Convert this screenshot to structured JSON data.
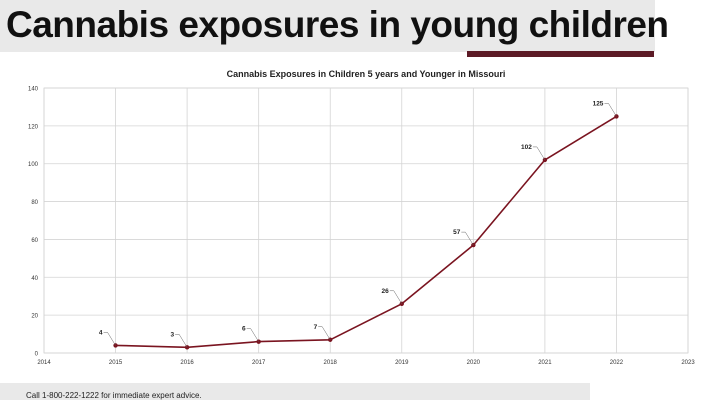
{
  "slide_title": "Cannabis exposures in young children",
  "footer": "Call 1-800-222-1222 for immediate expert advice.",
  "colors": {
    "accent": "#5c1a26",
    "series": "#7a1420",
    "band": "#e9e9e9",
    "grid": "#d4d4d4"
  },
  "chart_data": {
    "type": "line",
    "title": "Cannabis Exposures in Children 5 years and Younger in Missouri",
    "xlabel": "",
    "ylabel": "",
    "xlim": [
      2014,
      2023
    ],
    "ylim": [
      0,
      140
    ],
    "x_ticks": [
      "2014",
      "2015",
      "2016",
      "2017",
      "2018",
      "2019",
      "2020",
      "2021",
      "2022",
      "2023"
    ],
    "y_ticks": [
      "0",
      "20",
      "40",
      "60",
      "80",
      "100",
      "120",
      "140"
    ],
    "grid": true,
    "legend": "none",
    "series": [
      {
        "x": [
          2015,
          2016,
          2017,
          2018,
          2019,
          2020,
          2021,
          2022
        ],
        "values": [
          4,
          3,
          6,
          7,
          26,
          57,
          102,
          125
        ],
        "labels": [
          "4",
          "3",
          "6",
          "7",
          "26",
          "57",
          "102",
          "125"
        ]
      }
    ]
  }
}
